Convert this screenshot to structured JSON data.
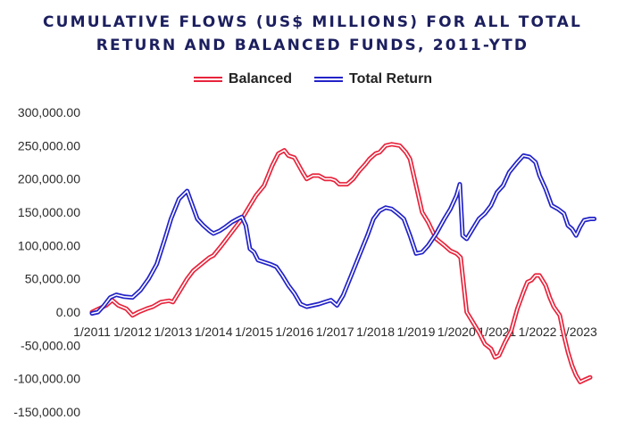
{
  "chart_data": {
    "type": "line",
    "title_lines": [
      "CUMULATIVE FLOWS (US$ MILLIONS) FOR ALL TOTAL",
      "RETURN AND BALANCED FUNDS, 2011-YTD"
    ],
    "legend_position": "top-center",
    "grid": false,
    "ylim": [
      -150000,
      300000
    ],
    "xlim": [
      2011.0,
      2023.85
    ],
    "y_ticks": [
      "300,000.00",
      "250,000.00",
      "200,000.00",
      "150,000.00",
      "100,000.00",
      "50,000.00",
      "0.00",
      "-50,000.00",
      "-100,000.00",
      "-150,000.00"
    ],
    "y_tick_values": [
      300000,
      250000,
      200000,
      150000,
      100000,
      50000,
      0,
      -50000,
      -100000,
      -150000
    ],
    "x_ticks": [
      "1/2011",
      "1/2012",
      "1/2013",
      "1/2014",
      "1/2015",
      "1/2016",
      "1/2017",
      "1/2018",
      "1/2019",
      "1/2020",
      "1/2021",
      "1/2022",
      "1/2023"
    ],
    "x_tick_values": [
      2011,
      2012,
      2013,
      2014,
      2015,
      2016,
      2017,
      2018,
      2019,
      2020,
      2021,
      2022,
      2023
    ],
    "series": [
      {
        "name": "Balanced",
        "color": "#e8243c",
        "x": [
          2011.0,
          2011.17,
          2011.35,
          2011.5,
          2011.65,
          2011.85,
          2012.0,
          2012.15,
          2012.35,
          2012.5,
          2012.7,
          2012.9,
          2013.0,
          2013.2,
          2013.35,
          2013.5,
          2013.7,
          2013.9,
          2014.0,
          2014.2,
          2014.45,
          2014.7,
          2014.9,
          2015.05,
          2015.25,
          2015.45,
          2015.6,
          2015.75,
          2015.85,
          2016.0,
          2016.2,
          2016.3,
          2016.45,
          2016.6,
          2016.75,
          2016.9,
          2017.0,
          2017.1,
          2017.3,
          2017.45,
          2017.6,
          2017.75,
          2017.85,
          2018.0,
          2018.1,
          2018.25,
          2018.4,
          2018.6,
          2018.75,
          2018.85,
          2019.0,
          2019.15,
          2019.3,
          2019.5,
          2019.7,
          2019.85,
          2020.0,
          2020.05,
          2020.1,
          2020.25,
          2020.4,
          2020.55,
          2020.7,
          2020.85,
          2020.95,
          2021.05,
          2021.2,
          2021.35,
          2021.5,
          2021.65,
          2021.75,
          2021.85,
          2021.95,
          2022.05,
          2022.2,
          2022.3,
          2022.4,
          2022.55,
          2022.65,
          2022.75,
          2022.85,
          2022.95,
          2023.05,
          2023.15,
          2023.3
        ],
        "values": [
          0,
          5000,
          10000,
          18000,
          10000,
          5000,
          -5000,
          0,
          5000,
          8000,
          15000,
          17000,
          15000,
          35000,
          50000,
          62000,
          72000,
          82000,
          85000,
          100000,
          120000,
          140000,
          160000,
          175000,
          190000,
          220000,
          238000,
          243000,
          235000,
          232000,
          210000,
          200000,
          205000,
          205000,
          200000,
          200000,
          198000,
          192000,
          192000,
          200000,
          212000,
          222000,
          230000,
          238000,
          240000,
          250000,
          252000,
          250000,
          240000,
          230000,
          190000,
          150000,
          135000,
          110000,
          100000,
          92000,
          88000,
          85000,
          82000,
          0,
          -15000,
          -30000,
          -48000,
          -55000,
          -68000,
          -65000,
          -45000,
          -28000,
          5000,
          30000,
          45000,
          48000,
          55000,
          55000,
          40000,
          22000,
          8000,
          -5000,
          -35000,
          -60000,
          -80000,
          -95000,
          -105000,
          -102000,
          -98000
        ],
        "values_note": ""
      },
      {
        "name": "Total Return",
        "color": "#2323c8",
        "x": [
          2011.0,
          2011.15,
          2011.3,
          2011.45,
          2011.6,
          2011.8,
          2012.0,
          2012.2,
          2012.4,
          2012.6,
          2012.8,
          2012.95,
          2013.15,
          2013.35,
          2013.45,
          2013.6,
          2013.75,
          2013.9,
          2014.0,
          2014.15,
          2014.3,
          2014.45,
          2014.6,
          2014.7,
          2014.8,
          2014.9,
          2015.0,
          2015.1,
          2015.25,
          2015.4,
          2015.55,
          2015.7,
          2015.85,
          2016.0,
          2016.15,
          2016.3,
          2016.45,
          2016.6,
          2016.75,
          2016.9,
          2017.05,
          2017.2,
          2017.4,
          2017.6,
          2017.8,
          2017.95,
          2018.1,
          2018.25,
          2018.4,
          2018.55,
          2018.7,
          2018.85,
          2019.0,
          2019.15,
          2019.3,
          2019.5,
          2019.7,
          2019.85,
          2020.0,
          2020.08,
          2020.15,
          2020.25,
          2020.4,
          2020.55,
          2020.7,
          2020.85,
          2021.0,
          2021.15,
          2021.3,
          2021.5,
          2021.65,
          2021.8,
          2021.95,
          2022.05,
          2022.2,
          2022.35,
          2022.5,
          2022.65,
          2022.75,
          2022.85,
          2022.95,
          2023.05,
          2023.15,
          2023.3,
          2023.4
        ],
        "values": [
          -2000,
          0,
          10000,
          22000,
          26000,
          23000,
          22000,
          33000,
          50000,
          72000,
          110000,
          140000,
          170000,
          182000,
          165000,
          140000,
          130000,
          122000,
          118000,
          122000,
          128000,
          135000,
          140000,
          143000,
          130000,
          95000,
          90000,
          78000,
          75000,
          72000,
          68000,
          55000,
          40000,
          28000,
          12000,
          8000,
          10000,
          12000,
          15000,
          18000,
          10000,
          25000,
          55000,
          85000,
          115000,
          140000,
          152000,
          157000,
          155000,
          148000,
          140000,
          115000,
          88000,
          90000,
          100000,
          118000,
          140000,
          155000,
          175000,
          192000,
          115000,
          110000,
          125000,
          140000,
          148000,
          160000,
          180000,
          190000,
          210000,
          225000,
          235000,
          233000,
          225000,
          205000,
          185000,
          160000,
          155000,
          148000,
          130000,
          125000,
          115000,
          128000,
          138000,
          140000,
          140000
        ]
      }
    ]
  }
}
